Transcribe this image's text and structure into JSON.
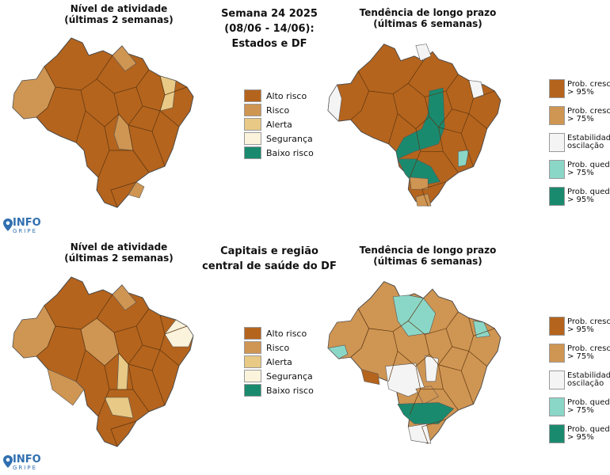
{
  "colors": {
    "alto": "#b5641d",
    "risco": "#cf9552",
    "alerta": "#e8c985",
    "seguranca": "#fbf3dc",
    "baixo": "#1a8a6f",
    "prob_cresc_95": "#b5641d",
    "prob_cresc_75": "#cf9552",
    "estab": "#f4f4f4",
    "prob_qued_75": "#8bd7c7",
    "prob_qued_95": "#1a8a6f",
    "border": "#6a3c10"
  },
  "panels": [
    {
      "left_title": [
        "Nível de atividade",
        "(últimas 2 semanas)"
      ],
      "center_title": [
        "Semana 24 2025",
        "(08/06 - 14/06):",
        "Estados e DF"
      ],
      "right_title": [
        "Tendência de longo prazo",
        "(últimas 6 semanas)"
      ],
      "left_fill": "alto",
      "right_fill": "alto"
    },
    {
      "left_title": [
        "Nível de atividade",
        "(últimas 2 semanas)"
      ],
      "center_title": [
        "Capitais e região",
        "central de saúde do DF"
      ],
      "right_title": [
        "Tendência de longo prazo",
        "(últimas 6 semanas)"
      ],
      "left_fill": "alto",
      "right_fill": "risco"
    }
  ],
  "level_legend": [
    {
      "label": "Alto risco",
      "color_key": "alto"
    },
    {
      "label": "Risco",
      "color_key": "risco"
    },
    {
      "label": "Alerta",
      "color_key": "alerta"
    },
    {
      "label": "Segurança",
      "color_key": "seguranca"
    },
    {
      "label": "Baixo risco",
      "color_key": "baixo"
    }
  ],
  "trend_legend": [
    {
      "line1": "Prob. cresc",
      "line2": "> 95%",
      "color_key": "prob_cresc_95"
    },
    {
      "line1": "Prob. cresc",
      "line2": "> 75%",
      "color_key": "prob_cresc_75"
    },
    {
      "line1": "Estabilidade",
      "line2": "oscilação",
      "color_key": "estab"
    },
    {
      "line1": "Prob. qued",
      "line2": "> 75%",
      "color_key": "prob_qued_75"
    },
    {
      "line1": "Prob. qued",
      "line2": "> 95%",
      "color_key": "prob_qued_95"
    }
  ],
  "logo": {
    "top": "INFO",
    "bottom": "GRIPE"
  }
}
